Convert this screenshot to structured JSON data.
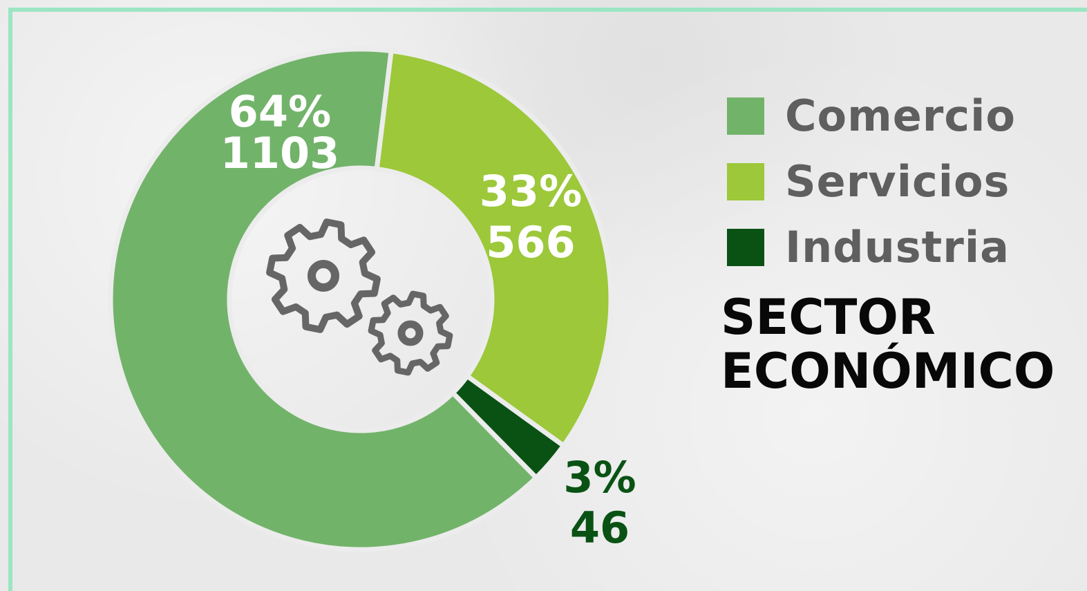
{
  "chart_data": {
    "type": "pie",
    "title": "SECTOR ECONÓMICO",
    "categories": [
      "Comercio",
      "Servicios",
      "Industria"
    ],
    "values": [
      1103,
      566,
      46
    ],
    "percent_labels": [
      "64%",
      "33%",
      "3%"
    ],
    "value_labels": [
      "1103",
      "566",
      "46"
    ],
    "colors": [
      "#72b36a",
      "#9cc83a",
      "#0a5214"
    ],
    "label_colors": [
      "#ffffff",
      "#ffffff",
      "#0a5214"
    ],
    "donut": true,
    "legend_position": "right",
    "center_icon": "gears-icon"
  },
  "legend": {
    "items": [
      {
        "label": "Comercio",
        "color": "#72b36a"
      },
      {
        "label": "Servicios",
        "color": "#9cc83a"
      },
      {
        "label": "Industria",
        "color": "#0a5214"
      }
    ]
  },
  "title": {
    "line1": "SECTOR",
    "line2": "ECONÓMICO"
  },
  "colors": {
    "frame": "#9ce5c3",
    "legend_text": "#5f5f5f",
    "title_text": "#080808",
    "icon": "#666666"
  }
}
